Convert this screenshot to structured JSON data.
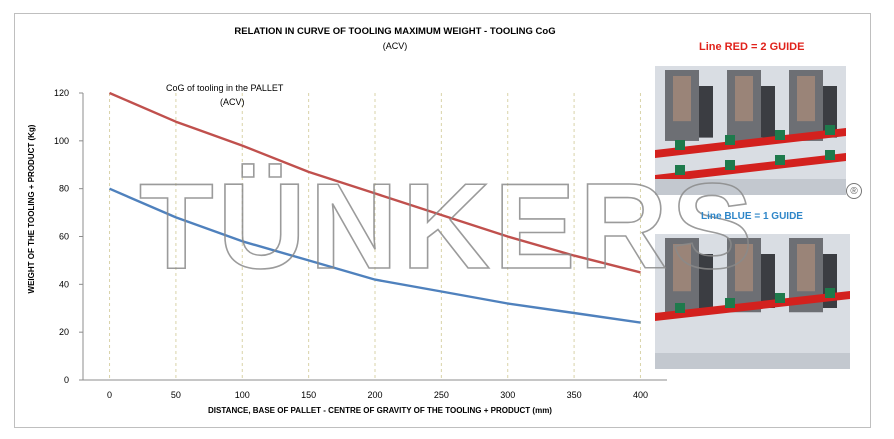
{
  "header": {
    "title": "RELATION IN CURVE OF TOOLING MAXIMUM WEIGHT  - TOOLING CoG",
    "subtitle": "(ACV)"
  },
  "annotation": {
    "line1": "CoG of tooling in the PALLET",
    "line2": "(ACV)"
  },
  "chart_data": {
    "type": "line",
    "title": "RELATION IN CURVE OF TOOLING MAXIMUM WEIGHT  - TOOLING CoG",
    "subtitle": "(ACV)",
    "xlabel": "DISTANCE, BASE OF PALLET - CENTRE OF GRAVITY OF THE TOOLING + PRODUCT (mm)",
    "ylabel": "WEIGHT OF THE TOOLING + PRODUCT  (Kg)",
    "x": [
      0,
      50,
      100,
      150,
      200,
      250,
      300,
      350,
      400
    ],
    "xlim": [
      -20,
      420
    ],
    "ylim": [
      0,
      120
    ],
    "x_ticks": [
      "0",
      "50",
      "100",
      "150",
      "200",
      "250",
      "300",
      "350",
      "400"
    ],
    "y_ticks": [
      "0",
      "20",
      "40",
      "60",
      "80",
      "100",
      "120"
    ],
    "grid": "vertical dashed",
    "series": [
      {
        "name": "Line RED = 2 GUIDE",
        "color": "#c0504d",
        "values": [
          120,
          108,
          98,
          87,
          78,
          69,
          60,
          52,
          45
        ]
      },
      {
        "name": "Line BLUE = 1 GUIDE",
        "color": "#4f81bd",
        "values": [
          80,
          68,
          58,
          50,
          42,
          37,
          32,
          28,
          24
        ]
      }
    ]
  },
  "legend": {
    "red_label": "Line RED = 2 GUIDE",
    "blue_label": "Line BLUE = 1 GUIDE",
    "red_color": "#e0221b",
    "blue_color": "#2e86c8"
  },
  "watermark": {
    "text": "TÜNKERS",
    "registered": "®"
  },
  "images": {
    "top_photo": "3d-render-two-guide-rails",
    "bottom_photo": "3d-render-one-guide-rail"
  }
}
